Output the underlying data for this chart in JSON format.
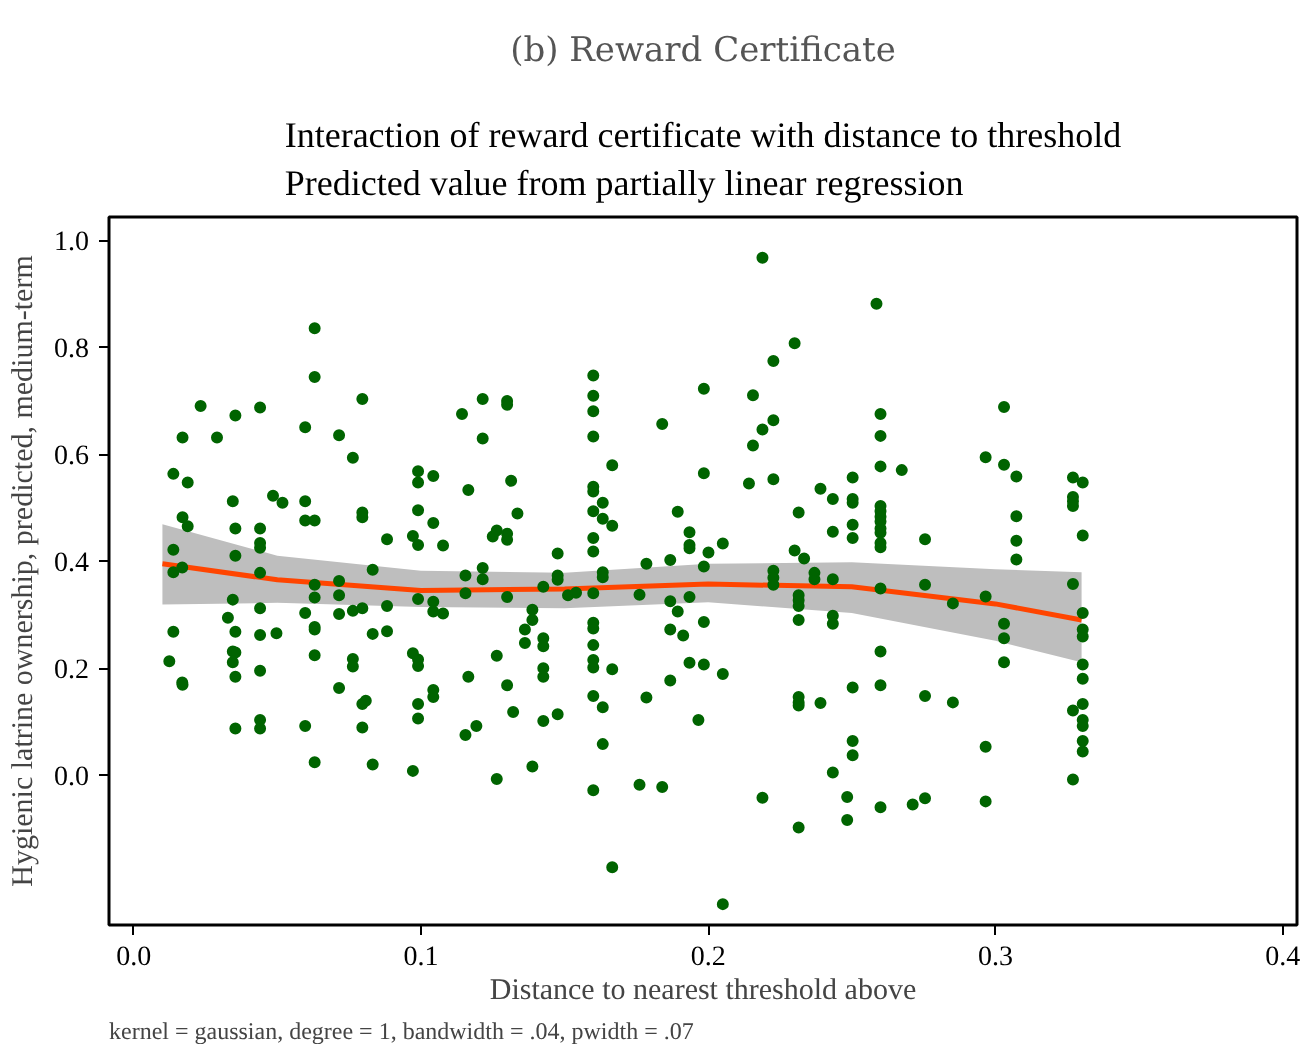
{
  "chart_data": {
    "type": "scatter",
    "title": "(b) Reward Certificate",
    "subtitle": "Interaction of reward certificate with distance to threshold\nPredicted value from partially linear regression",
    "xlabel": "Distance to nearest threshold above",
    "ylabel": "Hygienic latrine ownership, predicted, medium-term",
    "annotations": [
      "kernel = gaussian, degree = 1, bandwidth = .04, pwidth = .07"
    ],
    "xlim": [
      -0.0086,
      0.405
    ],
    "ylim": [
      -0.28,
      1.043
    ],
    "xticks": [
      {
        "value": 0,
        "label": "0.0"
      },
      {
        "value": 0.1,
        "label": "0.1"
      },
      {
        "value": 0.2,
        "label": "0.2"
      },
      {
        "value": 0.3,
        "label": "0.3"
      },
      {
        "value": 0.4,
        "label": "0.4"
      }
    ],
    "yticks": [
      {
        "value": 0,
        "label": "0.0"
      },
      {
        "value": 0.2,
        "label": "0.2"
      },
      {
        "value": 0.4,
        "label": "0.4"
      },
      {
        "value": 0.6,
        "label": "0.6"
      },
      {
        "value": 0.8,
        "label": "0.8"
      },
      {
        "value": 1.0,
        "label": "1.0"
      }
    ],
    "grid": false,
    "series": [
      {
        "marker": "circle",
        "color": "#006400",
        "x": [
          0.063,
          0.063,
          0.0233,
          0.044,
          0.0354,
          0.0796,
          0.017,
          0.029,
          0.0597,
          0.0715,
          0.0763,
          0.0138,
          0.0188,
          0.099,
          0.099,
          0.0345,
          0.0485,
          0.0518,
          0.0597,
          0.0597,
          0.063,
          0.0796,
          0.0796,
          0.017,
          0.0188,
          0.0354,
          0.044,
          0.099,
          0.0972,
          0.099,
          0.0882,
          0.044,
          0.044,
          0.0138,
          0.0138,
          0.0169,
          0.0354,
          0.044,
          0.0832,
          0.063,
          0.0715,
          0.063,
          0.0715,
          0.0715,
          0.0345,
          0.099,
          0.0328,
          0.0597,
          0.044,
          0.0763,
          0.0796,
          0.0882,
          0.0138,
          0.0354,
          0.044,
          0.0497,
          0.063,
          0.063,
          0.0832,
          0.0882,
          0.0124,
          0.0169,
          0.017,
          0.0345,
          0.0354,
          0.0345,
          0.0354,
          0.044,
          0.063,
          0.0763,
          0.0763,
          0.0972,
          0.099,
          0.099,
          0.0715,
          0.0808,
          0.0796,
          0.099,
          0.099,
          0.0354,
          0.044,
          0.044,
          0.0597,
          0.0796,
          0.063,
          0.0832,
          0.0972,
          0.16,
          0.1985,
          0.1215,
          0.13,
          0.13,
          0.1143,
          0.184,
          0.1215,
          0.16,
          0.16,
          0.16,
          0.1666,
          0.1985,
          0.1043,
          0.1314,
          0.1165,
          0.16,
          0.16,
          0.1633,
          0.1336,
          0.16,
          0.1894,
          0.1633,
          0.1043,
          0.1666,
          0.1077,
          0.125,
          0.1264,
          0.13,
          0.13,
          0.16,
          0.1935,
          0.1935,
          0.1935,
          0.2051,
          0.2001,
          0.1476,
          0.16,
          0.1785,
          0.1868,
          0.1985,
          0.1215,
          0.1155,
          0.1215,
          0.1476,
          0.1476,
          0.1633,
          0.1633,
          0.1426,
          0.13,
          0.1155,
          0.1512,
          0.154,
          0.16,
          0.1761,
          0.1868,
          0.1935,
          0.1043,
          0.1043,
          0.1077,
          0.1388,
          0.1388,
          0.1362,
          0.1894,
          0.1868,
          0.1913,
          0.1426,
          0.1426,
          0.1362,
          0.16,
          0.16,
          0.16,
          0.16,
          0.16,
          0.1985,
          0.1264,
          0.1426,
          0.1666,
          0.1935,
          0.1985,
          0.2051,
          0.1165,
          0.13,
          0.1868,
          0.1043,
          0.1043,
          0.1426,
          0.16,
          0.1785,
          0.1633,
          0.1321,
          0.1476,
          0.1426,
          0.1966,
          0.1193,
          0.1155,
          0.1633,
          0.1264,
          0.1388,
          0.16,
          0.1761,
          0.184,
          0.1666,
          0.2051,
          0.2189,
          0.2586,
          0.2301,
          0.2227,
          0.2156,
          0.2189,
          0.2227,
          0.2156,
          0.26,
          0.26,
          0.303,
          0.2966,
          0.303,
          0.3073,
          0.26,
          0.2674,
          0.2142,
          0.2227,
          0.2391,
          0.2434,
          0.2503,
          0.2503,
          0.2503,
          0.26,
          0.26,
          0.26,
          0.26,
          0.26,
          0.26,
          0.26,
          0.26,
          0.2503,
          0.2503,
          0.2434,
          0.2315,
          0.2755,
          0.3073,
          0.3073,
          0.3073,
          0.2301,
          0.2334,
          0.2227,
          0.2227,
          0.2227,
          0.237,
          0.237,
          0.2434,
          0.26,
          0.2755,
          0.2315,
          0.2315,
          0.2315,
          0.2315,
          0.2434,
          0.2434,
          0.2852,
          0.2966,
          0.303,
          0.303,
          0.303,
          0.26,
          0.2503,
          0.26,
          0.2315,
          0.2315,
          0.2315,
          0.2391,
          0.2755,
          0.2852,
          0.2503,
          0.2503,
          0.2434,
          0.2966,
          0.2189,
          0.2484,
          0.2484,
          0.26,
          0.2712,
          0.2755,
          0.2966,
          0.2315,
          0.327,
          0.3304,
          0.327,
          0.327,
          0.327,
          0.3304,
          0.327,
          0.3304,
          0.3304,
          0.3304,
          0.3304,
          0.3304,
          0.327,
          0.3304,
          0.3304,
          0.3304,
          0.3304,
          0.3304,
          0.327
        ],
        "values": [
          0.835,
          0.744,
          0.69,
          0.687,
          0.672,
          0.703,
          0.631,
          0.631,
          0.65,
          0.635,
          0.593,
          0.563,
          0.547,
          0.568,
          0.547,
          0.512,
          0.522,
          0.509,
          0.512,
          0.476,
          0.476,
          0.491,
          0.482,
          0.482,
          0.465,
          0.461,
          0.461,
          0.495,
          0.447,
          0.43,
          0.441,
          0.434,
          0.425,
          0.421,
          0.379,
          0.388,
          0.41,
          0.378,
          0.384,
          0.356,
          0.363,
          0.332,
          0.336,
          0.301,
          0.328,
          0.329,
          0.294,
          0.303,
          0.312,
          0.307,
          0.312,
          0.316,
          0.268,
          0.268,
          0.262,
          0.265,
          0.277,
          0.272,
          0.264,
          0.269,
          0.213,
          0.173,
          0.169,
          0.231,
          0.229,
          0.211,
          0.184,
          0.195,
          0.224,
          0.217,
          0.203,
          0.228,
          0.216,
          0.204,
          0.163,
          0.139,
          0.133,
          0.133,
          0.106,
          0.087,
          0.087,
          0.103,
          0.092,
          0.089,
          0.024,
          0.02,
          0.008,
          0.747,
          0.722,
          0.703,
          0.699,
          0.692,
          0.675,
          0.656,
          0.629,
          0.709,
          0.68,
          0.633,
          0.579,
          0.564,
          0.559,
          0.55,
          0.533,
          0.539,
          0.53,
          0.509,
          0.489,
          0.493,
          0.492,
          0.479,
          0.471,
          0.466,
          0.429,
          0.446,
          0.457,
          0.451,
          0.44,
          0.443,
          0.454,
          0.43,
          0.424,
          0.433,
          0.416,
          0.414,
          0.418,
          0.395,
          0.402,
          0.39,
          0.387,
          0.373,
          0.366,
          0.373,
          0.365,
          0.379,
          0.37,
          0.352,
          0.333,
          0.34,
          0.336,
          0.341,
          0.34,
          0.337,
          0.325,
          0.333,
          0.324,
          0.306,
          0.302,
          0.309,
          0.29,
          0.272,
          0.306,
          0.272,
          0.261,
          0.256,
          0.241,
          0.247,
          0.285,
          0.274,
          0.243,
          0.215,
          0.201,
          0.286,
          0.223,
          0.2,
          0.198,
          0.21,
          0.207,
          0.189,
          0.184,
          0.168,
          0.177,
          0.159,
          0.146,
          0.184,
          0.148,
          0.145,
          0.127,
          0.118,
          0.114,
          0.101,
          0.103,
          0.092,
          0.075,
          0.058,
          -0.007,
          0.016,
          -0.028,
          -0.018,
          -0.022,
          -0.172,
          -0.241,
          0.967,
          0.881,
          0.807,
          0.774,
          0.71,
          0.646,
          0.663,
          0.616,
          0.675,
          0.634,
          0.688,
          0.594,
          0.58,
          0.558,
          0.577,
          0.57,
          0.545,
          0.553,
          0.535,
          0.516,
          0.556,
          0.516,
          0.509,
          0.503,
          0.493,
          0.483,
          0.474,
          0.461,
          0.453,
          0.434,
          0.426,
          0.468,
          0.443,
          0.455,
          0.491,
          0.441,
          0.484,
          0.438,
          0.403,
          0.42,
          0.405,
          0.382,
          0.369,
          0.356,
          0.378,
          0.366,
          0.366,
          0.349,
          0.356,
          0.336,
          0.327,
          0.316,
          0.29,
          0.298,
          0.283,
          0.321,
          0.334,
          0.283,
          0.256,
          0.211,
          0.231,
          0.164,
          0.168,
          0.146,
          0.136,
          0.13,
          0.135,
          0.148,
          0.136,
          0.064,
          0.037,
          0.005,
          0.053,
          -0.042,
          -0.041,
          -0.084,
          -0.06,
          -0.055,
          -0.043,
          -0.049,
          -0.098,
          0.556,
          0.547,
          0.52,
          0.512,
          0.503,
          0.448,
          0.357,
          0.303,
          0.272,
          0.259,
          0.207,
          0.18,
          0.121,
          0.133,
          0.103,
          0.092,
          0.064,
          0.044,
          -0.008
        ]
      },
      {
        "type": "line",
        "color": "#ff4500",
        "x": [
          0.01,
          0.05,
          0.1,
          0.15,
          0.2,
          0.25,
          0.3,
          0.33
        ],
        "values": [
          0.395,
          0.365,
          0.345,
          0.348,
          0.357,
          0.352,
          0.32,
          0.29
        ],
        "lower": [
          0.319,
          0.322,
          0.314,
          0.312,
          0.323,
          0.303,
          0.251,
          0.211
        ],
        "upper": [
          0.469,
          0.41,
          0.382,
          0.378,
          0.395,
          0.398,
          0.385,
          0.379
        ]
      }
    ]
  }
}
